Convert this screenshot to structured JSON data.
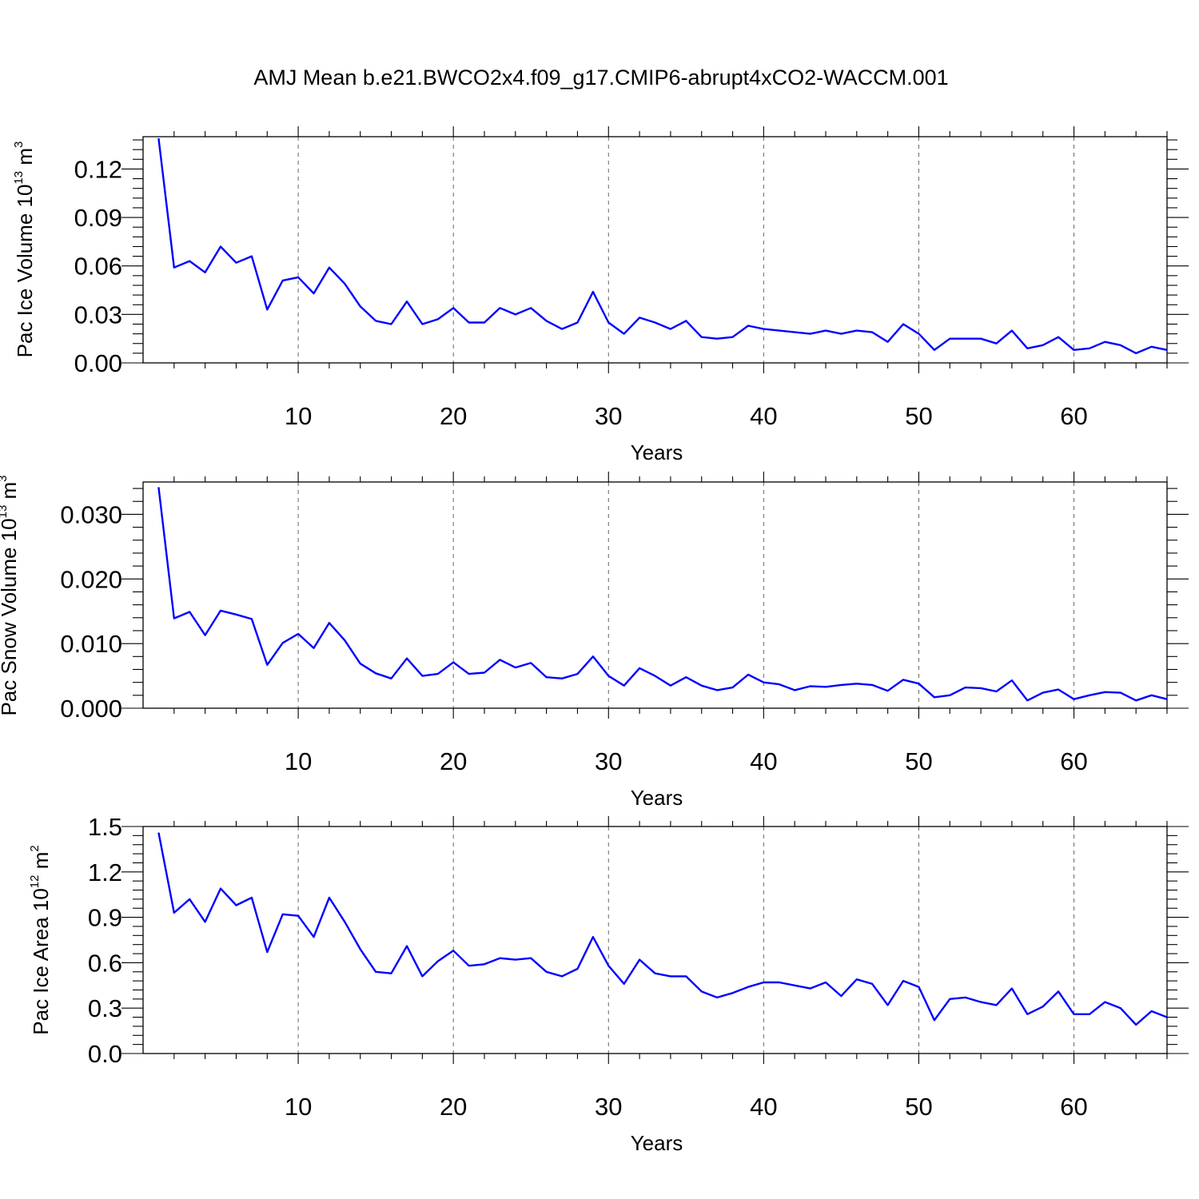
{
  "title": "AMJ Mean b.e21.BWCO2x4.f09_g17.CMIP6-abrupt4xCO2-WACCM.001",
  "line_color": "#0000ff",
  "chart_data": [
    {
      "type": "line",
      "xlabel": "Years",
      "ylabel": {
        "prefix": "Pac Ice Volume 10",
        "exponent": "13",
        "unit": " m",
        "unit_exponent": "3"
      },
      "xlim": [
        0,
        66
      ],
      "ylim": [
        0,
        0.14
      ],
      "xticks": [
        "10",
        "20",
        "30",
        "40",
        "50",
        "60"
      ],
      "yticks": [
        "0.00",
        "0.03",
        "0.06",
        "0.09",
        "0.12"
      ],
      "grid": "dashed vertical at major x ticks",
      "x": [
        1,
        2,
        3,
        4,
        5,
        6,
        7,
        8,
        9,
        10,
        11,
        12,
        13,
        14,
        15,
        16,
        17,
        18,
        19,
        20,
        21,
        22,
        23,
        24,
        25,
        26,
        27,
        28,
        29,
        30,
        31,
        32,
        33,
        34,
        35,
        36,
        37,
        38,
        39,
        40,
        41,
        42,
        43,
        44,
        45,
        46,
        47,
        48,
        49,
        50,
        51,
        52,
        53,
        54,
        55,
        56,
        57,
        58,
        59,
        60,
        61,
        62,
        63,
        64,
        65,
        66
      ],
      "series": [
        {
          "values": [
            0.139,
            0.059,
            0.063,
            0.056,
            0.072,
            0.062,
            0.066,
            0.033,
            0.051,
            0.053,
            0.043,
            0.059,
            0.049,
            0.035,
            0.026,
            0.024,
            0.038,
            0.024,
            0.027,
            0.034,
            0.025,
            0.025,
            0.034,
            0.03,
            0.034,
            0.026,
            0.021,
            0.025,
            0.044,
            0.025,
            0.018,
            0.028,
            0.025,
            0.021,
            0.026,
            0.016,
            0.015,
            0.016,
            0.023,
            0.021,
            0.02,
            0.019,
            0.018,
            0.02,
            0.018,
            0.02,
            0.019,
            0.013,
            0.024,
            0.018,
            0.008,
            0.015,
            0.015,
            0.015,
            0.012,
            0.02,
            0.009,
            0.011,
            0.016,
            0.008,
            0.009,
            0.013,
            0.011,
            0.006,
            0.01,
            0.008
          ]
        }
      ]
    },
    {
      "type": "line",
      "xlabel": "Years",
      "ylabel": {
        "prefix": "Pac Snow Volume 10",
        "exponent": "13",
        "unit": " m",
        "unit_exponent": "3"
      },
      "xlim": [
        0,
        66
      ],
      "ylim": [
        0,
        0.035
      ],
      "xticks": [
        "10",
        "20",
        "30",
        "40",
        "50",
        "60"
      ],
      "yticks": [
        "0.000",
        "0.010",
        "0.020",
        "0.030"
      ],
      "grid": "dashed vertical at major x ticks",
      "x": [
        1,
        2,
        3,
        4,
        5,
        6,
        7,
        8,
        9,
        10,
        11,
        12,
        13,
        14,
        15,
        16,
        17,
        18,
        19,
        20,
        21,
        22,
        23,
        24,
        25,
        26,
        27,
        28,
        29,
        30,
        31,
        32,
        33,
        34,
        35,
        36,
        37,
        38,
        39,
        40,
        41,
        42,
        43,
        44,
        45,
        46,
        47,
        48,
        49,
        50,
        51,
        52,
        53,
        54,
        55,
        56,
        57,
        58,
        59,
        60,
        61,
        62,
        63,
        64,
        65,
        66
      ],
      "series": [
        {
          "values": [
            0.0342,
            0.0139,
            0.0149,
            0.0113,
            0.0151,
            0.0145,
            0.0138,
            0.0067,
            0.0101,
            0.0115,
            0.0093,
            0.0132,
            0.0105,
            0.0069,
            0.0054,
            0.0046,
            0.0077,
            0.005,
            0.0053,
            0.0071,
            0.0053,
            0.0055,
            0.0075,
            0.0063,
            0.007,
            0.0048,
            0.0046,
            0.0053,
            0.008,
            0.005,
            0.0035,
            0.0062,
            0.005,
            0.0035,
            0.0048,
            0.0035,
            0.0028,
            0.0032,
            0.0052,
            0.004,
            0.0037,
            0.0028,
            0.0034,
            0.0033,
            0.0036,
            0.0038,
            0.0036,
            0.0027,
            0.0044,
            0.0038,
            0.0017,
            0.002,
            0.0032,
            0.0031,
            0.0026,
            0.0043,
            0.0012,
            0.0024,
            0.0029,
            0.0014,
            0.002,
            0.0025,
            0.0024,
            0.0012,
            0.002,
            0.0014
          ]
        }
      ]
    },
    {
      "type": "line",
      "xlabel": "Years",
      "ylabel": {
        "prefix": "Pac Ice Area 10",
        "exponent": "12",
        "unit": " m",
        "unit_exponent": "2"
      },
      "xlim": [
        0,
        66
      ],
      "ylim": [
        0,
        1.5
      ],
      "xticks": [
        "10",
        "20",
        "30",
        "40",
        "50",
        "60"
      ],
      "yticks": [
        "0.0",
        "0.3",
        "0.6",
        "0.9",
        "1.2",
        "1.5"
      ],
      "grid": "dashed vertical at major x ticks",
      "x": [
        1,
        2,
        3,
        4,
        5,
        6,
        7,
        8,
        9,
        10,
        11,
        12,
        13,
        14,
        15,
        16,
        17,
        18,
        19,
        20,
        21,
        22,
        23,
        24,
        25,
        26,
        27,
        28,
        29,
        30,
        31,
        32,
        33,
        34,
        35,
        36,
        37,
        38,
        39,
        40,
        41,
        42,
        43,
        44,
        45,
        46,
        47,
        48,
        49,
        50,
        51,
        52,
        53,
        54,
        55,
        56,
        57,
        58,
        59,
        60,
        61,
        62,
        63,
        64,
        65,
        66
      ],
      "series": [
        {
          "values": [
            1.46,
            0.93,
            1.02,
            0.87,
            1.09,
            0.98,
            1.03,
            0.67,
            0.92,
            0.91,
            0.77,
            1.03,
            0.87,
            0.69,
            0.54,
            0.53,
            0.71,
            0.51,
            0.61,
            0.68,
            0.58,
            0.59,
            0.63,
            0.62,
            0.63,
            0.54,
            0.51,
            0.56,
            0.77,
            0.58,
            0.46,
            0.62,
            0.53,
            0.51,
            0.51,
            0.41,
            0.37,
            0.4,
            0.44,
            0.47,
            0.47,
            0.45,
            0.43,
            0.47,
            0.38,
            0.49,
            0.46,
            0.32,
            0.48,
            0.44,
            0.22,
            0.36,
            0.37,
            0.34,
            0.32,
            0.43,
            0.26,
            0.31,
            0.41,
            0.26,
            0.26,
            0.34,
            0.3,
            0.19,
            0.28,
            0.24
          ]
        }
      ]
    }
  ]
}
